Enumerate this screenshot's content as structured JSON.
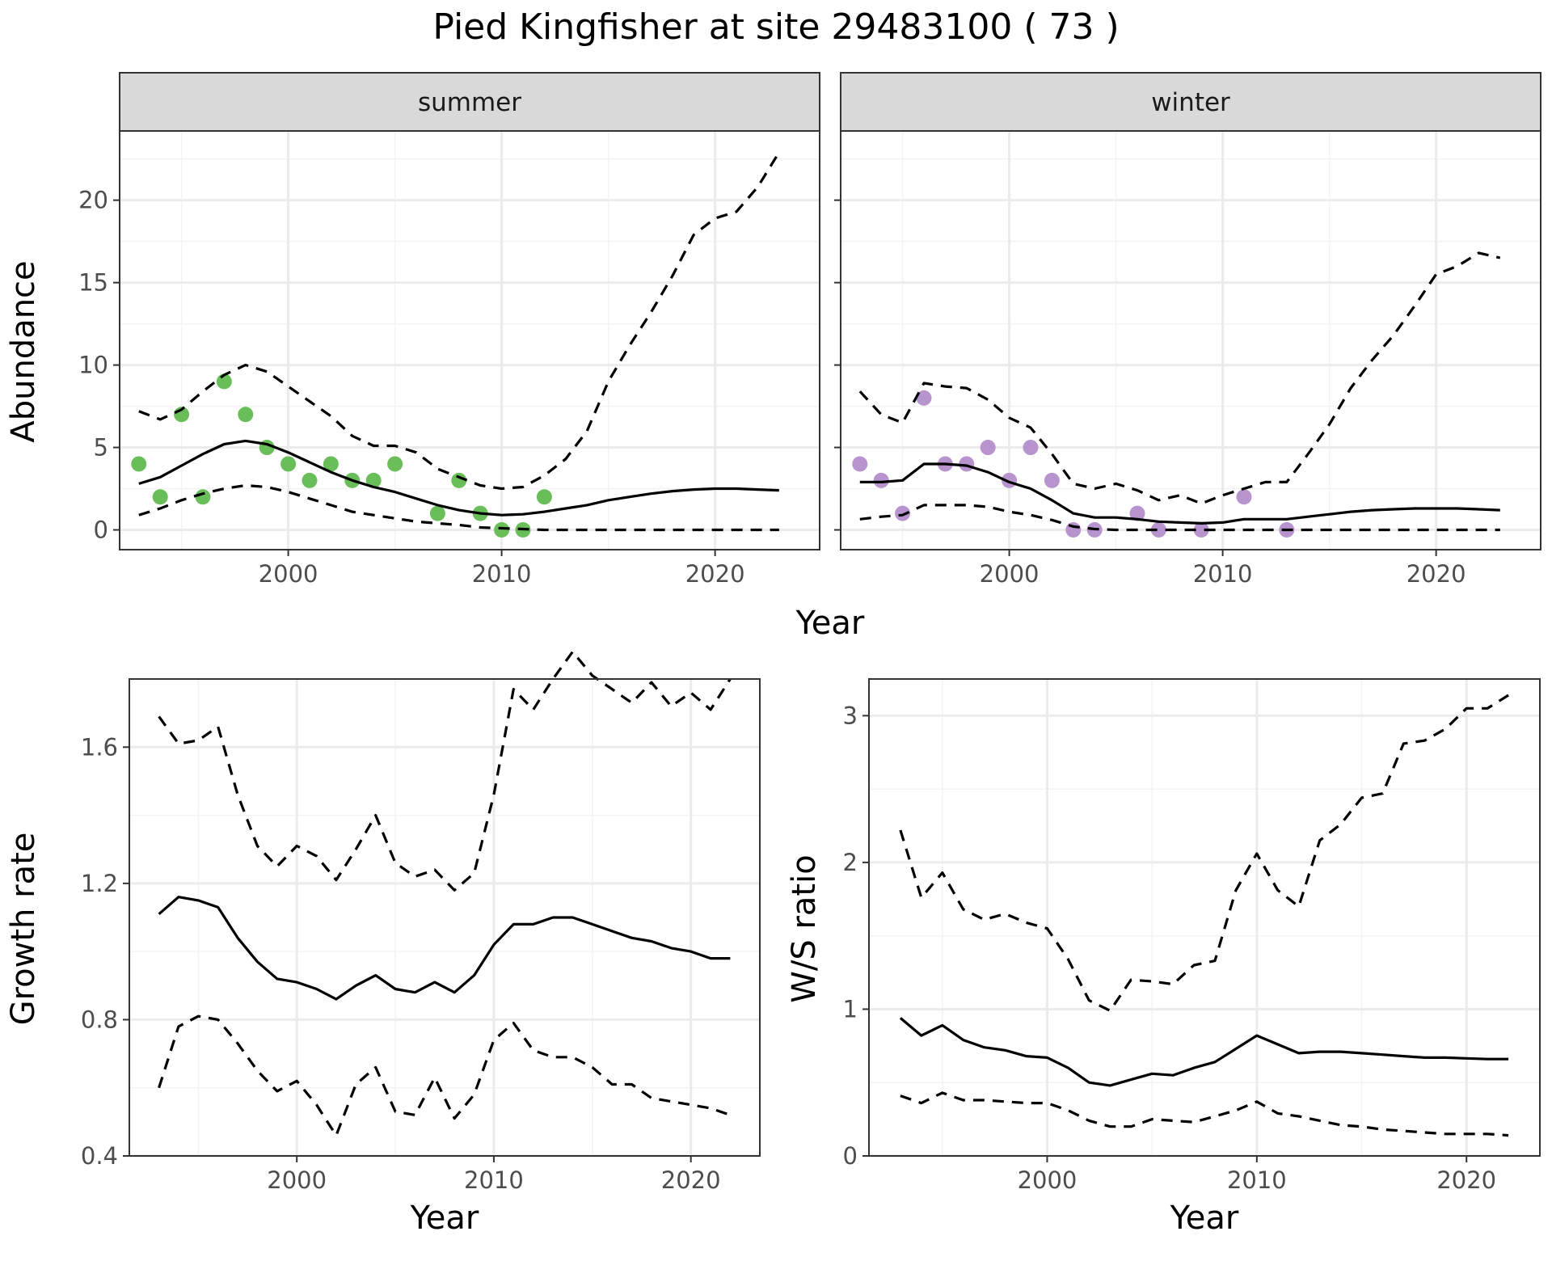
{
  "title": "Pied Kingfisher at site 29483100 ( 73 )",
  "colors": {
    "summer_points": "#6abe59",
    "winter_points": "#b894cf",
    "lines": "#000000",
    "strip_fill": "#d9d9d9",
    "grid_major": "#ebebeb",
    "grid_minor": "#f3f3f3"
  },
  "chart_data": [
    {
      "type": "line",
      "facet": "summer",
      "xlabel": "Year",
      "ylabel": "Abundance",
      "xlim": [
        1992.1,
        2024.9
      ],
      "ylim": [
        -1.2,
        24.2
      ],
      "x_ticks": [
        2000,
        2010,
        2020
      ],
      "y_ticks": [
        0,
        5,
        10,
        15,
        20
      ],
      "grid": true,
      "series": [
        {
          "role": "observed",
          "style": "points",
          "x": [
            1993,
            1994,
            1995,
            1996,
            1997,
            1998,
            1999,
            2000,
            2001,
            2002,
            2003,
            2004,
            2005,
            2007,
            2008,
            2009,
            2010,
            2011,
            2012
          ],
          "y": [
            4,
            2,
            7,
            2,
            9,
            7,
            5,
            4,
            3,
            4,
            3,
            3,
            4,
            1,
            3,
            1,
            0,
            0,
            2
          ]
        },
        {
          "role": "estimate",
          "style": "solid",
          "x": [
            1993,
            1994,
            1995,
            1996,
            1997,
            1998,
            1999,
            2000,
            2001,
            2002,
            2003,
            2004,
            2005,
            2006,
            2007,
            2008,
            2009,
            2010,
            2011,
            2012,
            2013,
            2014,
            2015,
            2016,
            2017,
            2018,
            2019,
            2020,
            2021,
            2022,
            2023
          ],
          "y": [
            2.8,
            3.2,
            3.9,
            4.6,
            5.2,
            5.4,
            5.2,
            4.7,
            4.1,
            3.5,
            3.0,
            2.6,
            2.3,
            1.9,
            1.5,
            1.2,
            1.0,
            0.9,
            0.95,
            1.1,
            1.3,
            1.5,
            1.8,
            2.0,
            2.2,
            2.35,
            2.45,
            2.5,
            2.5,
            2.45,
            2.4
          ]
        },
        {
          "role": "upper",
          "style": "dashed",
          "x": [
            1993,
            1994,
            1995,
            1996,
            1997,
            1998,
            1999,
            2000,
            2001,
            2002,
            2003,
            2004,
            2005,
            2006,
            2007,
            2008,
            2009,
            2010,
            2011,
            2012,
            2013,
            2014,
            2015,
            2016,
            2017,
            2018,
            2019,
            2020,
            2021,
            2022,
            2023
          ],
          "y": [
            7.2,
            6.7,
            7.3,
            8.4,
            9.4,
            10.0,
            9.6,
            8.7,
            7.8,
            6.9,
            5.7,
            5.1,
            5.1,
            4.7,
            3.7,
            3.2,
            2.7,
            2.5,
            2.6,
            3.3,
            4.3,
            6.0,
            9.0,
            11.2,
            13.2,
            15.4,
            17.9,
            18.9,
            19.3,
            20.8,
            22.9
          ]
        },
        {
          "role": "lower",
          "style": "dashed",
          "x": [
            1993,
            1994,
            1995,
            1996,
            1997,
            1998,
            1999,
            2000,
            2001,
            2002,
            2003,
            2004,
            2005,
            2006,
            2007,
            2008,
            2009,
            2010,
            2011,
            2012,
            2013,
            2014,
            2015,
            2016,
            2017,
            2018,
            2019,
            2020,
            2021,
            2022,
            2023
          ],
          "y": [
            0.9,
            1.3,
            1.8,
            2.2,
            2.5,
            2.7,
            2.6,
            2.3,
            1.9,
            1.5,
            1.1,
            0.9,
            0.7,
            0.5,
            0.4,
            0.3,
            0.15,
            0.1,
            0.05,
            0,
            0,
            0,
            0,
            0,
            0,
            0,
            0,
            0,
            0,
            0,
            0
          ]
        }
      ]
    },
    {
      "type": "line",
      "facet": "winter",
      "xlabel": "Year",
      "ylabel": "Abundance",
      "xlim": [
        1992.1,
        2024.9
      ],
      "ylim": [
        -1.2,
        24.2
      ],
      "x_ticks": [
        2000,
        2010,
        2020
      ],
      "y_ticks": [
        0,
        5,
        10,
        15,
        20
      ],
      "grid": true,
      "series": [
        {
          "role": "observed",
          "style": "points",
          "x": [
            1993,
            1994,
            1995,
            1996,
            1997,
            1998,
            1999,
            2000,
            2001,
            2002,
            2003,
            2004,
            2006,
            2007,
            2009,
            2011,
            2013
          ],
          "y": [
            4,
            3,
            1,
            8,
            4,
            4,
            5,
            3,
            5,
            3,
            0,
            0,
            1,
            0,
            0,
            2,
            0
          ]
        },
        {
          "role": "estimate",
          "style": "solid",
          "x": [
            1993,
            1994,
            1995,
            1996,
            1997,
            1998,
            1999,
            2000,
            2001,
            2002,
            2003,
            2004,
            2005,
            2006,
            2007,
            2008,
            2009,
            2010,
            2011,
            2012,
            2013,
            2014,
            2015,
            2016,
            2017,
            2018,
            2019,
            2020,
            2021,
            2022,
            2023
          ],
          "y": [
            2.9,
            2.9,
            3.0,
            4.0,
            4.0,
            3.9,
            3.5,
            2.9,
            2.5,
            1.8,
            1.0,
            0.75,
            0.75,
            0.65,
            0.5,
            0.45,
            0.4,
            0.45,
            0.65,
            0.65,
            0.65,
            0.8,
            0.95,
            1.1,
            1.2,
            1.25,
            1.3,
            1.3,
            1.3,
            1.25,
            1.2
          ]
        },
        {
          "role": "upper",
          "style": "dashed",
          "x": [
            1993,
            1994,
            1995,
            1996,
            1997,
            1998,
            1999,
            2000,
            2001,
            2002,
            2003,
            2004,
            2005,
            2006,
            2007,
            2008,
            2009,
            2010,
            2011,
            2012,
            2013,
            2014,
            2015,
            2016,
            2017,
            2018,
            2019,
            2020,
            2021,
            2022,
            2023
          ],
          "y": [
            8.4,
            7.0,
            6.5,
            8.9,
            8.7,
            8.6,
            7.9,
            6.8,
            6.2,
            4.6,
            2.8,
            2.5,
            2.8,
            2.4,
            1.8,
            2.1,
            1.6,
            2.1,
            2.5,
            2.9,
            2.9,
            4.6,
            6.4,
            8.6,
            10.3,
            11.8,
            13.6,
            15.5,
            16.0,
            16.8,
            16.5
          ]
        },
        {
          "role": "lower",
          "style": "dashed",
          "x": [
            1993,
            1994,
            1995,
            1996,
            1997,
            1998,
            1999,
            2000,
            2001,
            2002,
            2003,
            2004,
            2005,
            2006,
            2007,
            2008,
            2009,
            2010,
            2011,
            2012,
            2013,
            2014,
            2015,
            2016,
            2017,
            2018,
            2019,
            2020,
            2021,
            2022,
            2023
          ],
          "y": [
            0.65,
            0.8,
            0.9,
            1.5,
            1.5,
            1.5,
            1.4,
            1.1,
            0.9,
            0.6,
            0.2,
            0.05,
            0,
            0,
            0,
            0,
            0,
            0,
            0,
            0,
            0,
            0,
            0,
            0,
            0,
            0,
            0,
            0,
            0,
            0,
            0
          ]
        }
      ]
    },
    {
      "type": "line",
      "xlabel": "Year",
      "ylabel": "Growth rate",
      "xlim": [
        1991.5,
        2023.5
      ],
      "ylim": [
        0.4,
        1.8
      ],
      "x_ticks": [
        2000,
        2010,
        2020
      ],
      "y_ticks": [
        0.4,
        0.8,
        1.2,
        1.6
      ],
      "grid": true,
      "series": [
        {
          "role": "estimate",
          "style": "solid",
          "x": [
            1993,
            1994,
            1995,
            1996,
            1997,
            1998,
            1999,
            2000,
            2001,
            2002,
            2003,
            2004,
            2005,
            2006,
            2007,
            2008,
            2009,
            2010,
            2011,
            2012,
            2013,
            2014,
            2015,
            2016,
            2017,
            2018,
            2019,
            2020,
            2021,
            2022
          ],
          "y": [
            1.11,
            1.16,
            1.15,
            1.13,
            1.04,
            0.97,
            0.92,
            0.91,
            0.89,
            0.86,
            0.9,
            0.93,
            0.89,
            0.88,
            0.91,
            0.88,
            0.93,
            1.02,
            1.08,
            1.08,
            1.1,
            1.1,
            1.08,
            1.06,
            1.04,
            1.03,
            1.01,
            1.0,
            0.98,
            0.98
          ]
        },
        {
          "role": "upper",
          "style": "dashed",
          "x": [
            1993,
            1994,
            1995,
            1996,
            1997,
            1998,
            1999,
            2000,
            2001,
            2002,
            2003,
            2004,
            2005,
            2006,
            2007,
            2008,
            2009,
            2010,
            2011,
            2012,
            2013,
            2014,
            2015,
            2016,
            2017,
            2018,
            2019,
            2020,
            2021,
            2022
          ],
          "y": [
            1.69,
            1.61,
            1.62,
            1.66,
            1.46,
            1.31,
            1.25,
            1.31,
            1.28,
            1.21,
            1.3,
            1.4,
            1.26,
            1.22,
            1.24,
            1.18,
            1.23,
            1.46,
            1.77,
            1.71,
            1.8,
            1.88,
            1.81,
            1.77,
            1.73,
            1.79,
            1.72,
            1.76,
            1.71,
            1.8
          ]
        },
        {
          "role": "lower",
          "style": "dashed",
          "x": [
            1993,
            1994,
            1995,
            1996,
            1997,
            1998,
            1999,
            2000,
            2001,
            2002,
            2003,
            2004,
            2005,
            2006,
            2007,
            2008,
            2009,
            2010,
            2011,
            2012,
            2013,
            2014,
            2015,
            2016,
            2017,
            2018,
            2019,
            2020,
            2021,
            2022
          ],
          "y": [
            0.6,
            0.78,
            0.81,
            0.8,
            0.73,
            0.65,
            0.59,
            0.62,
            0.55,
            0.46,
            0.61,
            0.66,
            0.53,
            0.52,
            0.63,
            0.51,
            0.58,
            0.74,
            0.79,
            0.71,
            0.69,
            0.69,
            0.66,
            0.61,
            0.61,
            0.57,
            0.56,
            0.55,
            0.54,
            0.52
          ]
        }
      ]
    },
    {
      "type": "line",
      "xlabel": "Year",
      "ylabel": "W/S ratio",
      "xlim": [
        1991.5,
        2023.5
      ],
      "ylim": [
        0,
        3.25
      ],
      "x_ticks": [
        2000,
        2010,
        2020
      ],
      "y_ticks": [
        0,
        1,
        2,
        3
      ],
      "grid": true,
      "series": [
        {
          "role": "estimate",
          "style": "solid",
          "x": [
            1993,
            1994,
            1995,
            1996,
            1997,
            1998,
            1999,
            2000,
            2001,
            2002,
            2003,
            2004,
            2005,
            2006,
            2007,
            2008,
            2009,
            2010,
            2011,
            2012,
            2013,
            2014,
            2015,
            2016,
            2017,
            2018,
            2019,
            2020,
            2021,
            2022
          ],
          "y": [
            0.94,
            0.82,
            0.89,
            0.79,
            0.74,
            0.72,
            0.68,
            0.67,
            0.6,
            0.5,
            0.48,
            0.52,
            0.56,
            0.55,
            0.6,
            0.64,
            0.73,
            0.82,
            0.76,
            0.7,
            0.71,
            0.71,
            0.7,
            0.69,
            0.68,
            0.67,
            0.67,
            0.665,
            0.66,
            0.66
          ]
        },
        {
          "role": "upper",
          "style": "dashed",
          "x": [
            1993,
            1994,
            1995,
            1996,
            1997,
            1998,
            1999,
            2000,
            2001,
            2002,
            2003,
            2004,
            2005,
            2006,
            2007,
            2008,
            2009,
            2010,
            2011,
            2012,
            2013,
            2014,
            2015,
            2016,
            2017,
            2018,
            2019,
            2020,
            2021,
            2022
          ],
          "y": [
            2.22,
            1.76,
            1.93,
            1.68,
            1.61,
            1.65,
            1.59,
            1.55,
            1.34,
            1.06,
            0.99,
            1.2,
            1.19,
            1.17,
            1.3,
            1.33,
            1.81,
            2.06,
            1.81,
            1.7,
            2.15,
            2.26,
            2.44,
            2.47,
            2.81,
            2.83,
            2.91,
            3.05,
            3.05,
            3.14
          ]
        },
        {
          "role": "lower",
          "style": "dashed",
          "x": [
            1993,
            1994,
            1995,
            1996,
            1997,
            1998,
            1999,
            2000,
            2001,
            2002,
            2003,
            2004,
            2005,
            2006,
            2007,
            2008,
            2009,
            2010,
            2011,
            2012,
            2013,
            2014,
            2015,
            2016,
            2017,
            2018,
            2019,
            2020,
            2021,
            2022
          ],
          "y": [
            0.41,
            0.36,
            0.43,
            0.38,
            0.38,
            0.37,
            0.36,
            0.36,
            0.31,
            0.24,
            0.2,
            0.2,
            0.25,
            0.24,
            0.23,
            0.27,
            0.31,
            0.37,
            0.29,
            0.27,
            0.24,
            0.21,
            0.2,
            0.18,
            0.17,
            0.16,
            0.15,
            0.15,
            0.15,
            0.14
          ]
        }
      ]
    }
  ]
}
